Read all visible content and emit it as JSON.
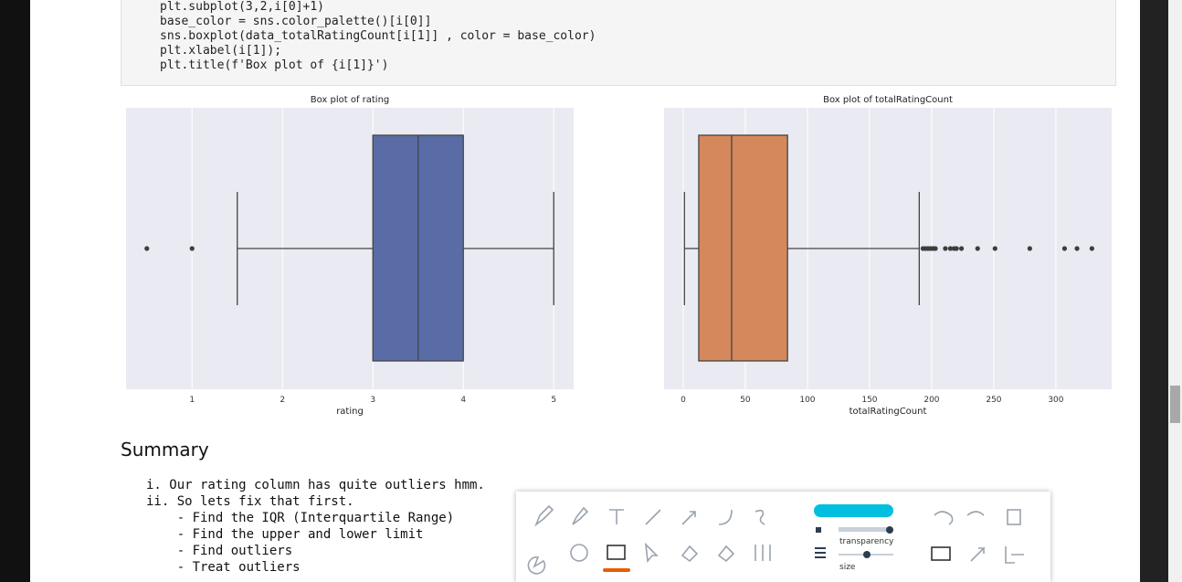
{
  "code": [
    "plt.subplot(3,2,i[0]+1)",
    "base_color = sns.color_palette()[i[0]]",
    "sns.boxplot(data_totalRatingCount[i[1]] , color = base_color)",
    "plt.xlabel(i[1]);",
    "plt.title(f'Box plot of {i[1]}')"
  ],
  "chart_data": [
    {
      "type": "box",
      "title": "Box plot of rating",
      "xlabel": "rating",
      "color": "#5a6ca6",
      "stats": {
        "whislo": 1.5,
        "q1": 3,
        "med": 3.5,
        "q3": 4,
        "whishi": 5
      },
      "outliers": [
        0.5,
        1
      ],
      "xlim": [
        0.27,
        5.22
      ],
      "xticks": [
        1,
        2,
        3,
        4,
        5
      ],
      "grid": true
    },
    {
      "type": "box",
      "title": "Box plot of totalRatingCount",
      "xlabel": "totalRatingCount",
      "color": "#d4885c",
      "stats": {
        "whislo": 1,
        "q1": 12.5,
        "med": 39,
        "q3": 84,
        "whishi": 190
      },
      "outliers": [
        193,
        195,
        197,
        199,
        201,
        203,
        211,
        215,
        218,
        220,
        224,
        237,
        251,
        279,
        307,
        317,
        329
      ],
      "xlim": [
        -15.4,
        344.9
      ],
      "xticks": [
        0,
        50,
        100,
        150,
        200,
        250,
        300
      ],
      "grid": true
    }
  ],
  "summary": {
    "heading": "Summary",
    "items": [
      "i. Our rating column has quite outliers hmm.",
      "ii. So lets fix that first.",
      "    - Find the IQR (Interquartile Range)",
      "    - Find the upper and lower limit",
      "    - Find outliers",
      "    - Treat outliers"
    ]
  },
  "toolbar": {
    "transparency": "transparency",
    "size": "size"
  }
}
